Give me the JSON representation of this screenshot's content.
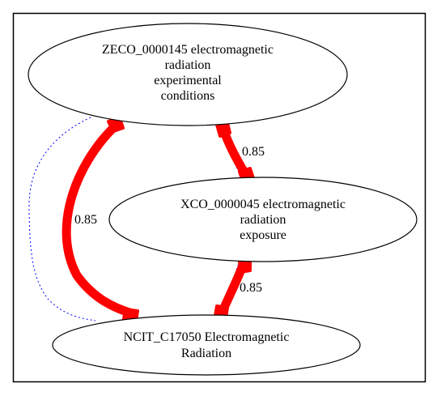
{
  "diagram": {
    "nodes": [
      {
        "id": "zeco",
        "label_lines": [
          "ZECO_0000145 electromagnetic",
          "radiation",
          "experimental",
          "conditions"
        ]
      },
      {
        "id": "xco",
        "label_lines": [
          "XCO_0000045 electromagnetic",
          "radiation",
          "exposure"
        ]
      },
      {
        "id": "ncit",
        "label_lines": [
          "NCIT_C17050 Electromagnetic",
          "Radiation"
        ]
      }
    ],
    "edges": [
      {
        "id": "zeco-ncit",
        "from": "zeco",
        "to": "ncit",
        "weight": "0.85"
      },
      {
        "id": "zeco-xco",
        "from": "zeco",
        "to": "xco",
        "weight": "0.85"
      },
      {
        "id": "xco-ncit",
        "from": "xco",
        "to": "ncit",
        "weight": "0.85"
      }
    ],
    "colors": {
      "strong_edge": "#ff0000",
      "weak_edge": "#0000ff",
      "node_stroke": "#000000",
      "frame": "#000000"
    }
  }
}
